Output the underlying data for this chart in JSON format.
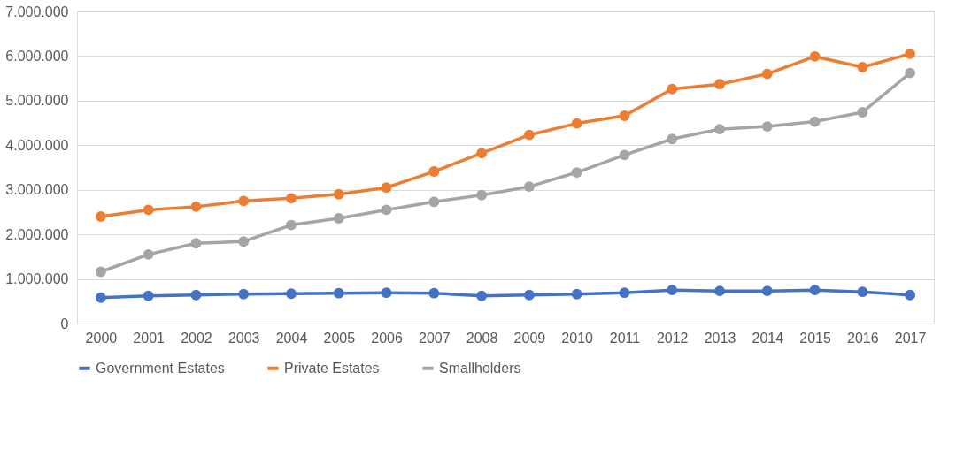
{
  "chart_data": {
    "type": "line",
    "categories": [
      "2000",
      "2001",
      "2002",
      "2003",
      "2004",
      "2005",
      "2006",
      "2007",
      "2008",
      "2009",
      "2010",
      "2011",
      "2012",
      "2013",
      "2014",
      "2015",
      "2016",
      "2017"
    ],
    "series": [
      {
        "name": "Government Estates",
        "color": "#4472c4",
        "values": [
          580000,
          620000,
          640000,
          660000,
          670000,
          680000,
          690000,
          680000,
          620000,
          640000,
          660000,
          690000,
          750000,
          730000,
          730000,
          750000,
          710000,
          640000
        ]
      },
      {
        "name": "Private Estates",
        "color": "#ed7d31",
        "values": [
          2400000,
          2550000,
          2620000,
          2750000,
          2810000,
          2900000,
          3050000,
          3410000,
          3820000,
          4230000,
          4490000,
          4660000,
          5260000,
          5370000,
          5600000,
          5990000,
          5750000,
          6050000
        ]
      },
      {
        "name": "Smallholders",
        "color": "#a5a5a5",
        "values": [
          1160000,
          1550000,
          1800000,
          1840000,
          2210000,
          2360000,
          2550000,
          2730000,
          2880000,
          3070000,
          3390000,
          3780000,
          4140000,
          4360000,
          4420000,
          4530000,
          4740000,
          5620000
        ]
      }
    ],
    "ylim": [
      0,
      7000000
    ],
    "yticks": [
      0,
      {
        "value": 1000000,
        "label": "1.000.000"
      },
      {
        "value": 2000000,
        "label": "2.000.000"
      },
      {
        "value": 3000000,
        "label": "3.000.000"
      },
      {
        "value": 4000000,
        "label": "4.000.000"
      },
      {
        "value": 5000000,
        "label": "5.000.000"
      },
      {
        "value": 6000000,
        "label": "6.000.000"
      },
      {
        "value": 7000000,
        "label": "7.000.000"
      }
    ],
    "grid": "y",
    "legend": "bottom",
    "marker": "circle",
    "line_style": "solid"
  }
}
